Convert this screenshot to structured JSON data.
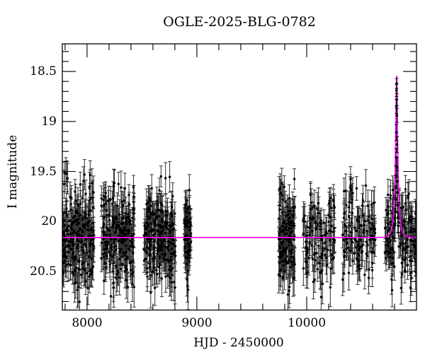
{
  "chart_data": {
    "type": "scatter",
    "title": "OGLE-2025-BLG-0782",
    "xlabel": "HJD - 2450000",
    "ylabel": "I magnitude",
    "xlim": [
      7775,
      11000
    ],
    "ylim": [
      18.224,
      20.885
    ],
    "y_axis_inverted_magnitude": true,
    "grid": false,
    "legend": "none",
    "xticks": {
      "major": [
        8000,
        9000,
        10000
      ],
      "labels": [
        "8000",
        "9000",
        "10000"
      ],
      "minor_step": 200
    },
    "yticks": {
      "major": [
        18.5,
        19.0,
        19.5,
        20.0,
        20.5
      ],
      "labels": [
        "18.5",
        "19",
        "19.5",
        "20",
        "20.5"
      ],
      "minor_step": 0.1
    },
    "colors": {
      "data": "#000000",
      "model": "#ff00ff",
      "axis": "#000000",
      "background": "#ffffff"
    },
    "baseline_mag": 20.16,
    "model": {
      "kind": "pspl-microlensing",
      "t0": 10819,
      "tE": 25,
      "u0": 0.23,
      "I_baseline": 20.16,
      "I_peak": 18.55
    },
    "seasons": [
      {
        "t_start": 7775,
        "t_end": 8065,
        "n": 240,
        "sigma": 0.235
      },
      {
        "t_start": 8130,
        "t_end": 8430,
        "n": 240,
        "sigma": 0.23
      },
      {
        "t_start": 8518,
        "t_end": 8805,
        "n": 240,
        "sigma": 0.235
      },
      {
        "t_start": 8885,
        "t_end": 8948,
        "n": 75,
        "sigma": 0.22
      },
      {
        "t_start": 9745,
        "t_end": 9895,
        "n": 150,
        "sigma": 0.26
      },
      {
        "t_start": 9968,
        "t_end": 10255,
        "n": 115,
        "sigma": 0.22
      },
      {
        "t_start": 10323,
        "t_end": 10625,
        "n": 125,
        "sigma": 0.23
      },
      {
        "t_start": 10712,
        "t_end": 11000,
        "n": 170,
        "sigma": 0.23,
        "skip_event_window": 15
      }
    ],
    "event_points": [
      [
        10819.5,
        18.62,
        0.05
      ],
      [
        10817.8,
        18.69,
        0.06
      ],
      [
        10820.8,
        18.78,
        0.06
      ],
      [
        10816.8,
        18.85,
        0.07
      ],
      [
        10821.6,
        18.94,
        0.07
      ],
      [
        10816.0,
        19.11,
        0.08
      ],
      [
        10822.5,
        19.23,
        0.08
      ],
      [
        10815.0,
        19.36,
        0.09
      ],
      [
        10823.4,
        19.46,
        0.1
      ],
      [
        10814.1,
        19.54,
        0.1
      ],
      [
        10824.5,
        19.6,
        0.11
      ],
      [
        10813.0,
        19.66,
        0.12
      ],
      [
        10825.6,
        19.71,
        0.12
      ],
      [
        10811.5,
        19.78,
        0.13
      ],
      [
        10827.5,
        19.84,
        0.13
      ],
      [
        10809.0,
        19.9,
        0.14
      ],
      [
        10830.5,
        19.96,
        0.15
      ],
      [
        10805.5,
        20.02,
        0.15
      ]
    ],
    "marker": {
      "radius": 1.7,
      "cap_half_width": 2.5
    },
    "tick_style": {
      "major_len": 19,
      "minor_len": 9,
      "direction": "in"
    },
    "seed": 1234
  }
}
